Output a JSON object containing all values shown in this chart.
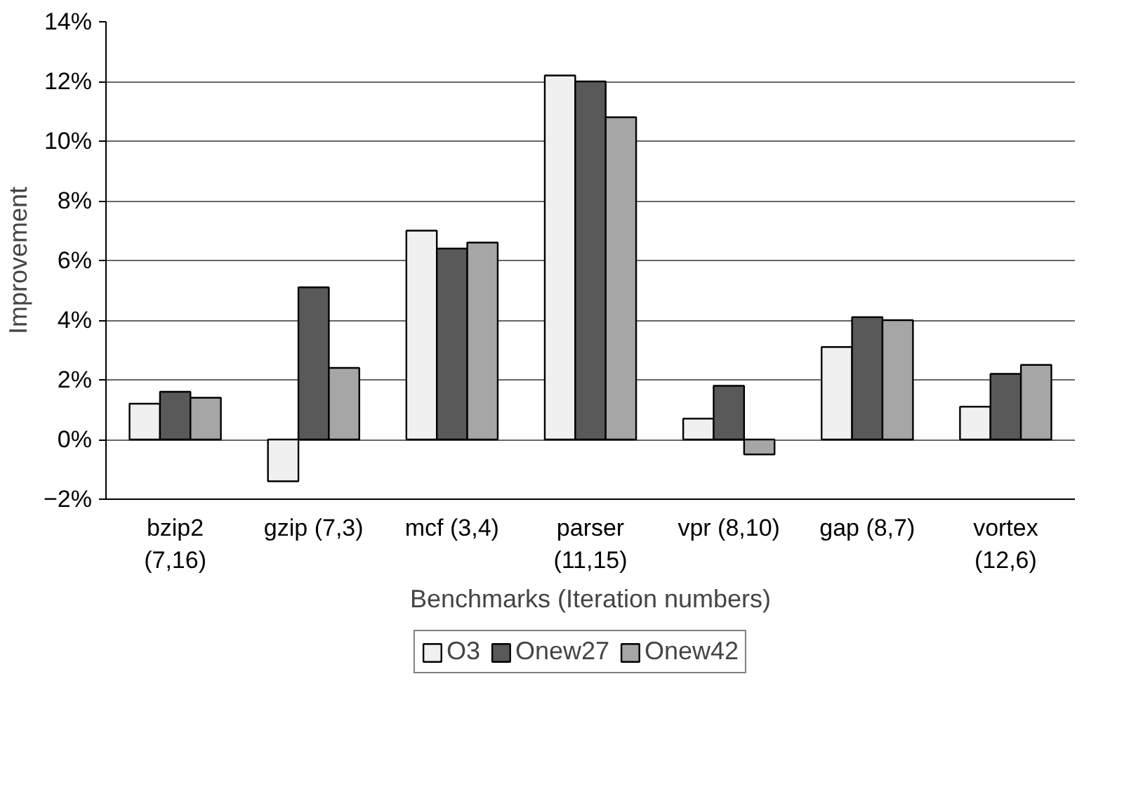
{
  "chart_data": {
    "type": "bar",
    "xlabel": "Benchmarks (Iteration numbers)",
    "ylabel": "Improvement",
    "categories": [
      "bzip2\n(7,16)",
      "gzip (7,3)",
      "mcf (3,4)",
      "parser\n(11,15)",
      "vpr (8,10)",
      "gap (8,7)",
      "vortex\n(12,6)"
    ],
    "series": [
      {
        "name": "O3",
        "color": "#f0f0f0",
        "values": [
          1.2,
          -1.4,
          7.0,
          12.2,
          0.7,
          3.1,
          1.1
        ]
      },
      {
        "name": "Onew27",
        "color": "#595959",
        "values": [
          1.6,
          5.1,
          6.4,
          12.0,
          1.8,
          4.1,
          2.2
        ]
      },
      {
        "name": "Onew42",
        "color": "#a6a6a6",
        "values": [
          1.4,
          2.4,
          6.6,
          10.8,
          -0.5,
          4.0,
          2.5
        ]
      }
    ],
    "ylim": [
      -2,
      14
    ],
    "yticks": [
      {
        "value": -2,
        "label": "−2%"
      },
      {
        "value": 0,
        "label": "0%"
      },
      {
        "value": 2,
        "label": "2%"
      },
      {
        "value": 4,
        "label": "4%"
      },
      {
        "value": 6,
        "label": "6%"
      },
      {
        "value": 8,
        "label": "8%"
      },
      {
        "value": 10,
        "label": "10%"
      },
      {
        "value": 12,
        "label": "12%"
      },
      {
        "value": 14,
        "label": "14%"
      }
    ],
    "grid": "y",
    "legend": "bottom"
  }
}
